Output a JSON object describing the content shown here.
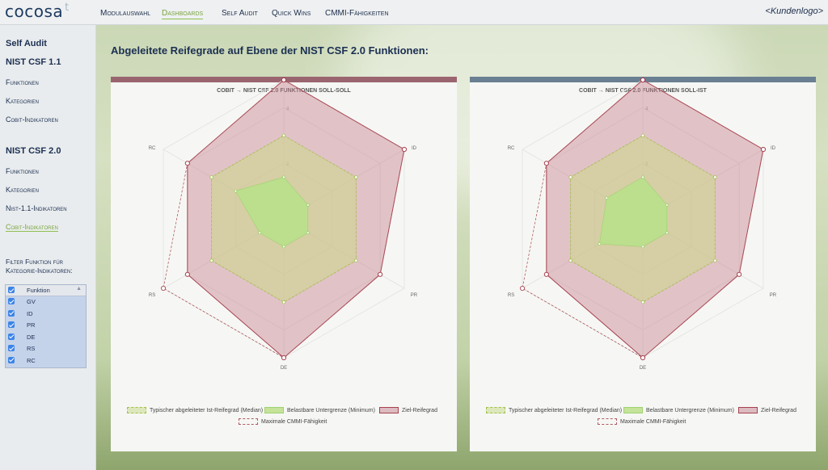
{
  "app": {
    "logo": "cocosa",
    "logo_mark": "t",
    "customer_logo": "<Kundenlogo>"
  },
  "nav": [
    {
      "label": "Modulauswahl",
      "active": false
    },
    {
      "label": "Dashboards",
      "active": true
    },
    {
      "label": "Self Audit",
      "active": false
    },
    {
      "label": "Quick Wins",
      "active": false
    },
    {
      "label": "CMMI-Fähigkeiten",
      "active": false
    }
  ],
  "sidebar": {
    "section1": "Self Audit",
    "section2": "NIST CSF 1.1",
    "items1": [
      "Funktionen",
      "Kategorien",
      "Cobit-Indikatoren"
    ],
    "section3": "NIST CSF 2.0",
    "items2": [
      "Funktionen",
      "Kategorien",
      "Nist-1.1-Indikatoren",
      "Cobit-Indikatoren"
    ],
    "active_item": "Cobit-Indikatoren",
    "filter_label": "Filter Funktion für Kategorie-Indikatoren:",
    "filter_header": "Funktion",
    "filter_items": [
      "GV",
      "ID",
      "PR",
      "DE",
      "RS",
      "RC"
    ]
  },
  "page_title": "Abgeleitete Reifegrade auf Ebene der NIST CSF 2.0 Funktionen:",
  "colors": {
    "left_bar": "#9b6570",
    "right_bar": "#6a8092",
    "target": "#a7404f",
    "median": "#a3c24a",
    "minimum": "#9fd271",
    "max_cmmi": "#b05a63"
  },
  "legend": {
    "median": "Typischer abgeleiteter Ist-Reifegrad (Median)",
    "minimum": "Belastbare Untergrenze (Minimum)",
    "target": "Ziel-Reifegrad",
    "max": "Maximale CMMI-Fähigkeit"
  },
  "chart_data": [
    {
      "type": "radar",
      "title": "COBIT → NIST CSF 2.0 FUNKTIONEN SOLL-SOLL",
      "categories": [
        "GV",
        "ID",
        "PR",
        "DE",
        "RS",
        "RC"
      ],
      "range": [
        0,
        5
      ],
      "ticks": [
        "2",
        "4"
      ],
      "series": [
        {
          "name": "Ziel-Reifegrad",
          "values": [
            5,
            5,
            4,
            5,
            4,
            4
          ]
        },
        {
          "name": "Typischer abgeleiteter Ist-Reifegrad (Median)",
          "values": [
            3,
            3,
            3,
            3,
            3,
            3
          ]
        },
        {
          "name": "Belastbare Untergrenze (Minimum)",
          "values": [
            1.5,
            1,
            1,
            1,
            1,
            2
          ]
        },
        {
          "name": "Maximale CMMI-Fähigkeit",
          "values": [
            5,
            5,
            4,
            5,
            5,
            4
          ]
        }
      ]
    },
    {
      "type": "radar",
      "title": "COBIT → NIST CSF 2.0 FUNKTIONEN SOLL-IST",
      "categories": [
        "GV",
        "ID",
        "PR",
        "DE",
        "RS",
        "RC"
      ],
      "range": [
        0,
        5
      ],
      "ticks": [
        "2",
        "4"
      ],
      "series": [
        {
          "name": "Ziel-Reifegrad",
          "values": [
            5,
            5,
            4,
            5,
            4,
            4
          ]
        },
        {
          "name": "Typischer abgeleiteter Ist-Reifegrad (Median)",
          "values": [
            3,
            3,
            3,
            3,
            3,
            3
          ]
        },
        {
          "name": "Belastbare Untergrenze (Minimum)",
          "values": [
            1.5,
            1,
            1,
            1,
            1.8,
            1.5
          ]
        },
        {
          "name": "Maximale CMMI-Fähigkeit",
          "values": [
            5,
            5,
            4,
            5,
            5,
            4
          ]
        }
      ]
    }
  ]
}
